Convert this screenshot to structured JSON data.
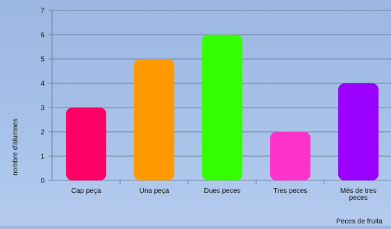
{
  "chart_data": {
    "type": "bar",
    "categories": [
      [
        "Cap peça"
      ],
      [
        "Una peça"
      ],
      [
        "Dues peces"
      ],
      [
        "Tres peces"
      ],
      [
        "Més de tres",
        "peces"
      ]
    ],
    "values": [
      3,
      5,
      6,
      2,
      4
    ],
    "colors": [
      "#ff0066",
      "#ff9900",
      "#33ff00",
      "#ff33cc",
      "#9900ff"
    ],
    "ylabel": "nombre d'alumnes",
    "xlabel": "Peces de fruita",
    "ylim": [
      0,
      7
    ],
    "yticks": [
      0,
      1,
      2,
      3,
      4,
      5,
      6,
      7
    ],
    "grid": true,
    "legend": "none"
  }
}
